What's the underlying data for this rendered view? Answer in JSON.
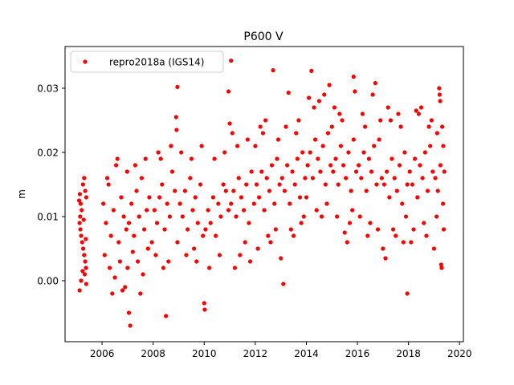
{
  "chart_data": {
    "type": "scatter",
    "title": "P600 V",
    "xlabel": "",
    "ylabel": "m",
    "xlim": [
      2004.55,
      2020.15
    ],
    "ylim": [
      -0.0095,
      0.0365
    ],
    "xticks": [
      2006,
      2008,
      2010,
      2012,
      2014,
      2016,
      2018,
      2020
    ],
    "xtick_labels": [
      "2006",
      "2008",
      "2010",
      "2012",
      "2014",
      "2016",
      "2018",
      "2020"
    ],
    "yticks": [
      0.0,
      0.01,
      0.02,
      0.03
    ],
    "ytick_labels": [
      "0.00",
      "0.01",
      "0.02",
      "0.03"
    ],
    "grid": false,
    "legend_position": "top-left",
    "series": [
      {
        "name": "repro2018a (IGS14)",
        "color": "#ff0000",
        "marker": "circle",
        "points": [
          [
            2005.1,
            0.0125
          ],
          [
            2005.13,
            0.0135
          ],
          [
            2005.16,
            0.012
          ],
          [
            2005.2,
            0.011
          ],
          [
            2005.25,
            0.015
          ],
          [
            2005.3,
            0.016
          ],
          [
            2005.34,
            0.014
          ],
          [
            2005.38,
            0.013
          ],
          [
            2005.12,
            0.009
          ],
          [
            2005.15,
            0.008
          ],
          [
            2005.18,
            0.007
          ],
          [
            2005.22,
            0.006
          ],
          [
            2005.26,
            0.005
          ],
          [
            2005.3,
            0.004
          ],
          [
            2005.34,
            0.003
          ],
          [
            2005.37,
            0.002
          ],
          [
            2005.12,
            -0.0015
          ],
          [
            2005.18,
            0.0
          ],
          [
            2005.24,
            0.0015
          ],
          [
            2005.32,
            0.001
          ],
          [
            2005.38,
            -0.0005
          ],
          [
            2005.14,
            0.01
          ],
          [
            2005.28,
            0.0095
          ],
          [
            2005.36,
            0.0065
          ],
          [
            2006.05,
            0.012
          ],
          [
            2006.15,
            0.009
          ],
          [
            2006.25,
            0.015
          ],
          [
            2006.35,
            0.007
          ],
          [
            2006.45,
            0.011
          ],
          [
            2006.55,
            0.018
          ],
          [
            2006.65,
            0.006
          ],
          [
            2006.75,
            0.013
          ],
          [
            2006.85,
            0.01
          ],
          [
            2006.95,
            0.008
          ],
          [
            2006.1,
            0.004
          ],
          [
            2006.3,
            0.002
          ],
          [
            2006.5,
            0.0005
          ],
          [
            2006.7,
            0.003
          ],
          [
            2006.9,
            -0.001
          ],
          [
            2006.6,
            0.019
          ],
          [
            2006.4,
            -0.002
          ],
          [
            2006.8,
            -0.0015
          ],
          [
            2006.2,
            0.016
          ],
          [
            2006.98,
            0.017
          ],
          [
            2007.05,
            0.009
          ],
          [
            2007.15,
            0.012
          ],
          [
            2007.25,
            0.007
          ],
          [
            2007.35,
            0.014
          ],
          [
            2007.45,
            0.01
          ],
          [
            2007.55,
            0.016
          ],
          [
            2007.65,
            0.008
          ],
          [
            2007.75,
            0.011
          ],
          [
            2007.85,
            0.013
          ],
          [
            2007.95,
            0.006
          ],
          [
            2007.0,
            0.002
          ],
          [
            2007.2,
            0.0045
          ],
          [
            2007.4,
            0.003
          ],
          [
            2007.6,
            0.001
          ],
          [
            2007.8,
            0.005
          ],
          [
            2007.1,
            -0.007
          ],
          [
            2007.05,
            -0.005
          ],
          [
            2007.5,
            -0.002
          ],
          [
            2007.3,
            0.018
          ],
          [
            2007.7,
            0.019
          ],
          [
            2008.05,
            0.011
          ],
          [
            2008.15,
            0.009
          ],
          [
            2008.25,
            0.013
          ],
          [
            2008.35,
            0.015
          ],
          [
            2008.45,
            0.008
          ],
          [
            2008.55,
            0.012
          ],
          [
            2008.65,
            0.01
          ],
          [
            2008.75,
            0.017
          ],
          [
            2008.85,
            0.014
          ],
          [
            2008.95,
            0.006
          ],
          [
            2008.5,
            -0.0055
          ],
          [
            2008.6,
            0.003
          ],
          [
            2008.9,
            0.0255
          ],
          [
            2008.92,
            0.0235
          ],
          [
            2008.95,
            0.0302
          ],
          [
            2008.2,
            0.02
          ],
          [
            2008.4,
            0.002
          ],
          [
            2008.7,
            0.021
          ],
          [
            2008.1,
            0.004
          ],
          [
            2008.3,
            0.019
          ],
          [
            2009.05,
            0.012
          ],
          [
            2009.15,
            0.01
          ],
          [
            2009.25,
            0.014
          ],
          [
            2009.35,
            0.008
          ],
          [
            2009.45,
            0.016
          ],
          [
            2009.55,
            0.011
          ],
          [
            2009.65,
            0.013
          ],
          [
            2009.75,
            0.009
          ],
          [
            2009.85,
            0.015
          ],
          [
            2009.95,
            0.007
          ],
          [
            2009.1,
            0.02
          ],
          [
            2009.3,
            0.004
          ],
          [
            2009.5,
            0.019
          ],
          [
            2009.7,
            0.003
          ],
          [
            2009.9,
            0.021
          ],
          [
            2009.6,
            0.005
          ],
          [
            2010.05,
            0.008
          ],
          [
            2010.15,
            0.011
          ],
          [
            2010.25,
            0.009
          ],
          [
            2010.35,
            0.013
          ],
          [
            2010.45,
            0.007
          ],
          [
            2010.55,
            0.012
          ],
          [
            2010.65,
            0.01
          ],
          [
            2010.75,
            0.015
          ],
          [
            2010.85,
            0.014
          ],
          [
            2010.95,
            0.011
          ],
          [
            2010.0,
            -0.0035
          ],
          [
            2010.02,
            -0.0045
          ],
          [
            2010.2,
            0.002
          ],
          [
            2010.4,
            0.019
          ],
          [
            2010.6,
            0.004
          ],
          [
            2010.8,
            0.02
          ],
          [
            2011.05,
            0.012
          ],
          [
            2011.15,
            0.014
          ],
          [
            2011.25,
            0.01
          ],
          [
            2011.35,
            0.016
          ],
          [
            2011.45,
            0.013
          ],
          [
            2011.55,
            0.011
          ],
          [
            2011.65,
            0.015
          ],
          [
            2011.75,
            0.009
          ],
          [
            2011.85,
            0.017
          ],
          [
            2011.95,
            0.012
          ],
          [
            2011.05,
            0.0343
          ],
          [
            2010.95,
            0.0295
          ],
          [
            2011.0,
            0.0245
          ],
          [
            2011.1,
            0.023
          ],
          [
            2011.2,
            0.002
          ],
          [
            2011.4,
            0.004
          ],
          [
            2011.6,
            0.006
          ],
          [
            2011.8,
            0.003
          ],
          [
            2011.3,
            0.021
          ],
          [
            2011.7,
            0.022
          ],
          [
            2012.05,
            0.015
          ],
          [
            2012.15,
            0.013
          ],
          [
            2012.25,
            0.017
          ],
          [
            2012.35,
            0.011
          ],
          [
            2012.45,
            0.016
          ],
          [
            2012.55,
            0.014
          ],
          [
            2012.65,
            0.018
          ],
          [
            2012.75,
            0.012
          ],
          [
            2012.85,
            0.019
          ],
          [
            2012.95,
            0.015
          ],
          [
            2012.7,
            0.0328
          ],
          [
            2012.2,
            0.024
          ],
          [
            2012.4,
            0.025
          ],
          [
            2012.6,
            0.006
          ],
          [
            2012.8,
            0.008
          ],
          [
            2012.1,
            0.005
          ],
          [
            2012.3,
            0.023
          ],
          [
            2012.9,
            0.022
          ],
          [
            2012.5,
            0.007
          ],
          [
            2012.0,
            0.021
          ],
          [
            2013.05,
            0.016
          ],
          [
            2013.15,
            0.014
          ],
          [
            2013.25,
            0.018
          ],
          [
            2013.35,
            0.012
          ],
          [
            2013.45,
            0.017
          ],
          [
            2013.55,
            0.015
          ],
          [
            2013.65,
            0.019
          ],
          [
            2013.75,
            0.013
          ],
          [
            2013.85,
            0.02
          ],
          [
            2013.95,
            0.016
          ],
          [
            2013.1,
            -0.0005
          ],
          [
            2013.0,
            0.0035
          ],
          [
            2013.3,
            0.0293
          ],
          [
            2013.2,
            0.024
          ],
          [
            2013.4,
            0.008
          ],
          [
            2013.6,
            0.023
          ],
          [
            2013.8,
            0.009
          ],
          [
            2013.5,
            0.007
          ],
          [
            2013.7,
            0.025
          ],
          [
            2013.9,
            0.01
          ],
          [
            2014.05,
            0.018
          ],
          [
            2014.15,
            0.02
          ],
          [
            2014.25,
            0.016
          ],
          [
            2014.35,
            0.022
          ],
          [
            2014.45,
            0.019
          ],
          [
            2014.55,
            0.017
          ],
          [
            2014.65,
            0.021
          ],
          [
            2014.75,
            0.015
          ],
          [
            2014.85,
            0.023
          ],
          [
            2014.95,
            0.018
          ],
          [
            2014.2,
            0.0327
          ],
          [
            2014.1,
            0.0285
          ],
          [
            2014.3,
            0.027
          ],
          [
            2014.5,
            0.028
          ],
          [
            2014.7,
            0.029
          ],
          [
            2014.9,
            0.0305
          ],
          [
            2014.4,
            0.011
          ],
          [
            2014.6,
            0.01
          ],
          [
            2014.8,
            0.012
          ],
          [
            2014.0,
            0.013
          ],
          [
            2015.05,
            0.017
          ],
          [
            2015.15,
            0.019
          ],
          [
            2015.25,
            0.015
          ],
          [
            2015.35,
            0.021
          ],
          [
            2015.45,
            0.018
          ],
          [
            2015.55,
            0.016
          ],
          [
            2015.65,
            0.02
          ],
          [
            2015.75,
            0.014
          ],
          [
            2015.85,
            0.022
          ],
          [
            2015.95,
            0.017
          ],
          [
            2015.1,
            0.027
          ],
          [
            2015.3,
            0.026
          ],
          [
            2015.5,
            0.0075
          ],
          [
            2015.7,
            0.009
          ],
          [
            2015.9,
            0.0295
          ],
          [
            2015.6,
            0.006
          ],
          [
            2015.2,
            0.01
          ],
          [
            2015.4,
            0.025
          ],
          [
            2015.8,
            0.011
          ],
          [
            2015.0,
            0.024
          ],
          [
            2016.05,
            0.018
          ],
          [
            2016.15,
            0.016
          ],
          [
            2016.25,
            0.02
          ],
          [
            2016.35,
            0.014
          ],
          [
            2016.45,
            0.019
          ],
          [
            2016.55,
            0.017
          ],
          [
            2016.65,
            0.021
          ],
          [
            2016.75,
            0.015
          ],
          [
            2016.85,
            0.022
          ],
          [
            2016.95,
            0.016
          ],
          [
            2015.85,
            0.0318
          ],
          [
            2016.7,
            0.0308
          ],
          [
            2016.6,
            0.029
          ],
          [
            2016.2,
            0.026
          ],
          [
            2016.4,
            0.007
          ],
          [
            2016.8,
            0.008
          ],
          [
            2016.1,
            0.01
          ],
          [
            2016.3,
            0.024
          ],
          [
            2016.5,
            0.009
          ],
          [
            2016.9,
            0.025
          ],
          [
            2017.05,
            0.015
          ],
          [
            2017.15,
            0.017
          ],
          [
            2017.25,
            0.013
          ],
          [
            2017.35,
            0.019
          ],
          [
            2017.45,
            0.016
          ],
          [
            2017.55,
            0.014
          ],
          [
            2017.65,
            0.018
          ],
          [
            2017.75,
            0.012
          ],
          [
            2017.85,
            0.02
          ],
          [
            2017.95,
            0.015
          ],
          [
            2017.1,
            0.0035
          ],
          [
            2017.0,
            0.005
          ],
          [
            2017.2,
            0.027
          ],
          [
            2017.4,
            0.008
          ],
          [
            2017.6,
            0.026
          ],
          [
            2017.8,
            0.006
          ],
          [
            2017.3,
            0.025
          ],
          [
            2017.5,
            0.007
          ],
          [
            2017.7,
            0.024
          ],
          [
            2017.9,
            0.01
          ],
          [
            2018.05,
            0.017
          ],
          [
            2018.15,
            0.015
          ],
          [
            2018.25,
            0.019
          ],
          [
            2018.35,
            0.013
          ],
          [
            2018.45,
            0.018
          ],
          [
            2018.55,
            0.016
          ],
          [
            2018.65,
            0.02
          ],
          [
            2018.75,
            0.014
          ],
          [
            2018.85,
            0.021
          ],
          [
            2018.95,
            0.017
          ],
          [
            2017.95,
            -0.002
          ],
          [
            2018.1,
            0.006
          ],
          [
            2018.3,
            0.0265
          ],
          [
            2018.5,
            0.027
          ],
          [
            2018.7,
            0.007
          ],
          [
            2018.9,
            0.025
          ],
          [
            2018.2,
            0.008
          ],
          [
            2018.4,
            0.026
          ],
          [
            2018.6,
            0.009
          ],
          [
            2018.8,
            0.024
          ],
          [
            2019.05,
            0.016
          ],
          [
            2019.15,
            0.014
          ],
          [
            2019.25,
            0.018
          ],
          [
            2019.35,
            0.012
          ],
          [
            2019.4,
            0.017
          ],
          [
            2019.1,
            0.01
          ],
          [
            2019.2,
            0.03
          ],
          [
            2019.22,
            0.029
          ],
          [
            2019.24,
            0.028
          ],
          [
            2019.28,
            0.0025
          ],
          [
            2019.3,
            0.002
          ],
          [
            2019.0,
            0.005
          ],
          [
            2019.32,
            0.024
          ],
          [
            2019.36,
            0.021
          ],
          [
            2019.38,
            0.008
          ],
          [
            2019.12,
            0.023
          ]
        ]
      }
    ]
  }
}
